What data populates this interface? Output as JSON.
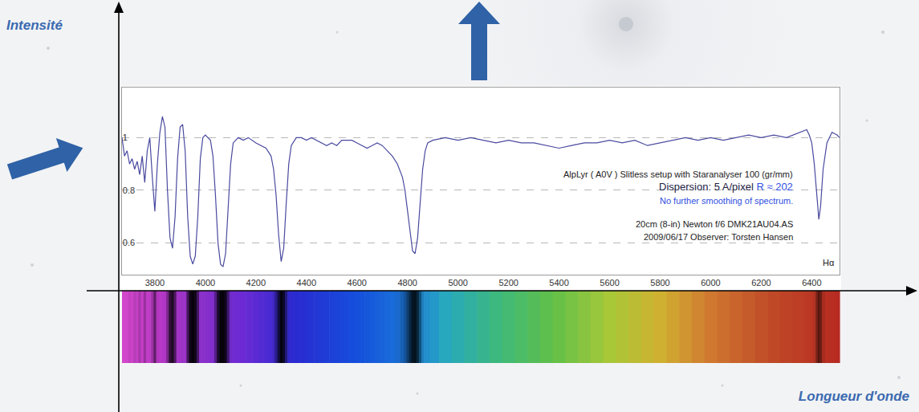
{
  "chart_data": {
    "type": "line",
    "x_label": "Longueur d'onde",
    "y_label": "Intensité",
    "color": "#4a4aa0",
    "grid": true,
    "xlim": [
      3670,
      6510
    ],
    "xticks": [
      3800,
      4000,
      4200,
      4400,
      4600,
      4800,
      5000,
      5200,
      5400,
      5600,
      5800,
      6000,
      6200,
      6400
    ],
    "ylim": [
      0.48,
      1.19
    ],
    "yticks": [
      0.6,
      0.8,
      1
    ],
    "x": [
      3670,
      3680,
      3690,
      3700,
      3710,
      3720,
      3730,
      3740,
      3750,
      3760,
      3770,
      3780,
      3790,
      3800,
      3810,
      3820,
      3830,
      3840,
      3850,
      3860,
      3870,
      3880,
      3890,
      3900,
      3910,
      3920,
      3930,
      3940,
      3950,
      3960,
      3970,
      3980,
      3990,
      4000,
      4020,
      4030,
      4040,
      4050,
      4060,
      4070,
      4080,
      4090,
      4100,
      4110,
      4130,
      4150,
      4170,
      4200,
      4220,
      4240,
      4260,
      4270,
      4280,
      4290,
      4300,
      4310,
      4320,
      4330,
      4340,
      4360,
      4380,
      4400,
      4420,
      4440,
      4460,
      4480,
      4500,
      4520,
      4540,
      4560,
      4580,
      4600,
      4620,
      4640,
      4660,
      4680,
      4700,
      4720,
      4740,
      4760,
      4780,
      4790,
      4800,
      4810,
      4820,
      4830,
      4840,
      4850,
      4860,
      4870,
      4880,
      4900,
      4950,
      5000,
      5050,
      5100,
      5150,
      5200,
      5250,
      5300,
      5350,
      5400,
      5450,
      5500,
      5550,
      5600,
      5650,
      5700,
      5750,
      5800,
      5850,
      5900,
      5950,
      6000,
      6050,
      6100,
      6150,
      6200,
      6250,
      6300,
      6350,
      6380,
      6390,
      6400,
      6410,
      6420,
      6428,
      6435,
      6445,
      6460,
      6480,
      6500,
      6510
    ],
    "values": [
      1.0,
      0.93,
      0.95,
      0.9,
      0.92,
      0.88,
      0.91,
      0.86,
      0.93,
      0.83,
      0.95,
      1.0,
      0.85,
      0.72,
      0.9,
      1.02,
      1.08,
      1.04,
      0.8,
      0.62,
      0.58,
      0.7,
      0.92,
      1.04,
      1.05,
      0.95,
      0.7,
      0.55,
      0.52,
      0.55,
      0.7,
      0.92,
      1.0,
      1.01,
      0.99,
      0.93,
      0.78,
      0.6,
      0.52,
      0.51,
      0.56,
      0.72,
      0.9,
      0.98,
      1.0,
      0.99,
      1.0,
      0.98,
      0.97,
      0.96,
      0.93,
      0.88,
      0.78,
      0.63,
      0.53,
      0.58,
      0.75,
      0.9,
      0.97,
      1.0,
      1.0,
      0.99,
      1.0,
      0.99,
      0.98,
      0.97,
      0.98,
      0.97,
      0.99,
      0.99,
      0.99,
      0.98,
      0.97,
      0.96,
      0.97,
      0.98,
      0.97,
      0.95,
      0.93,
      0.9,
      0.85,
      0.8,
      0.72,
      0.64,
      0.57,
      0.56,
      0.62,
      0.75,
      0.88,
      0.95,
      0.98,
      0.99,
      1.0,
      0.99,
      1.0,
      0.99,
      0.98,
      0.99,
      0.98,
      0.98,
      0.97,
      0.96,
      0.97,
      0.98,
      0.98,
      0.99,
      0.98,
      0.99,
      0.97,
      0.98,
      0.99,
      1.0,
      0.99,
      1.0,
      0.99,
      1.0,
      1.01,
      1.0,
      1.01,
      1.0,
      1.02,
      1.03,
      1.01,
      0.98,
      0.9,
      0.78,
      0.69,
      0.74,
      0.88,
      0.98,
      1.02,
      1.01,
      1.0
    ],
    "annotations": [
      {
        "segments": [
          {
            "text": "AlpLyr ( A0V ) Slitless setup with Staranalyser 100 (gr/mm)",
            "color": "#222222"
          }
        ]
      },
      {
        "segments": [
          {
            "text": "Dispersion: 5 A/pixel",
            "color": "#222244"
          },
          {
            "text": "R ≈ 202",
            "color": "#3050e0"
          }
        ]
      },
      {
        "segments": [
          {
            "text": "No further smoothing of spectrum.",
            "color": "#3050e0"
          }
        ]
      },
      {
        "segments": [
          {
            "text": "20cm (8-in) Newton f/6 DMK21AU04.AS",
            "color": "#222222"
          }
        ]
      },
      {
        "segments": [
          {
            "text": "2009/06/17 Observer: Torsten Hansen",
            "color": "#222222"
          }
        ]
      },
      {
        "segments": [
          {
            "text": "Hα",
            "color": "#222222"
          }
        ]
      }
    ]
  }
}
